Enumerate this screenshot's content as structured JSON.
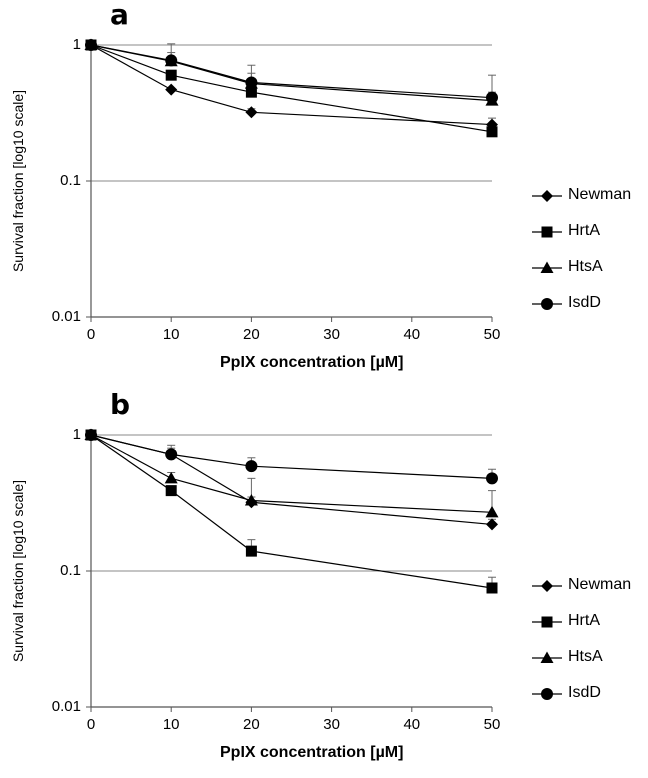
{
  "chart_data": [
    {
      "type": "line",
      "panel_label": "a",
      "xlabel": "PpIX concentration [µM]",
      "ylabel": "Survival fraction [log10 scale]",
      "y_scale": "log",
      "xlim": [
        0,
        50
      ],
      "ylim": [
        0.01,
        1
      ],
      "x_ticks": [
        "0",
        "10",
        "20",
        "30",
        "40",
        "50"
      ],
      "y_ticks": [
        "0.01",
        "0.1",
        "1"
      ],
      "grid": "horizontal",
      "legend_position": "right",
      "x": [
        0,
        10,
        20,
        50
      ],
      "series": [
        {
          "name": "Newman",
          "marker": "diamond",
          "values": [
            1,
            0.47,
            0.32,
            0.26
          ],
          "errors": [
            0,
            0,
            0.02,
            0.03
          ]
        },
        {
          "name": "HrtA",
          "marker": "square",
          "values": [
            1,
            0.6,
            0.45,
            0.23
          ],
          "errors": [
            0,
            0,
            0.02,
            0.02
          ]
        },
        {
          "name": "HtsA",
          "marker": "triangle",
          "values": [
            1,
            0.76,
            0.52,
            0.39
          ],
          "errors": [
            0,
            0.12,
            0.1,
            0.06
          ]
        },
        {
          "name": "IsdD",
          "marker": "circle",
          "values": [
            1,
            0.77,
            0.53,
            0.41
          ],
          "errors": [
            0,
            0.25,
            0.18,
            0.19
          ]
        }
      ]
    },
    {
      "type": "line",
      "panel_label": "b",
      "xlabel": "PpIX concentration [µM]",
      "ylabel": "Survival fraction [log10 scale]",
      "y_scale": "log",
      "xlim": [
        0,
        50
      ],
      "ylim": [
        0.01,
        1
      ],
      "x_ticks": [
        "0",
        "10",
        "20",
        "30",
        "40",
        "50"
      ],
      "y_ticks": [
        "0.01",
        "0.1",
        "1"
      ],
      "grid": "horizontal",
      "legend_position": "right",
      "x": [
        0,
        10,
        20,
        50
      ],
      "series": [
        {
          "name": "Newman",
          "marker": "diamond",
          "values": [
            1,
            0.72,
            0.32,
            0.22
          ],
          "errors": [
            0,
            0.08,
            0.03,
            0.02
          ]
        },
        {
          "name": "HrtA",
          "marker": "square",
          "values": [
            1,
            0.39,
            0.14,
            0.075
          ],
          "errors": [
            0,
            0.02,
            0.03,
            0.015
          ]
        },
        {
          "name": "HtsA",
          "marker": "triangle",
          "values": [
            1,
            0.48,
            0.33,
            0.27
          ],
          "errors": [
            0,
            0.05,
            0.15,
            0.12
          ]
        },
        {
          "name": "IsdD",
          "marker": "circle",
          "values": [
            1,
            0.72,
            0.59,
            0.48
          ],
          "errors": [
            0,
            0.12,
            0.09,
            0.08
          ]
        }
      ]
    }
  ]
}
